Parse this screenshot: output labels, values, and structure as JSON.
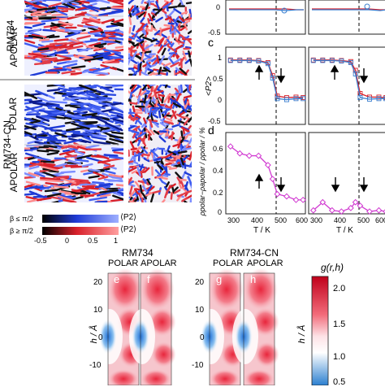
{
  "left_panels": {
    "row_labels": [
      "RM734",
      "RM734-CN"
    ],
    "sub_labels": [
      "POLAR",
      "APOLAR",
      "POLAR",
      "APOLAR"
    ],
    "colorbar": {
      "row1_label": "β ≤ π/2",
      "row2_label": "β ≥ π/2",
      "p2_label": "⟨P2⟩",
      "ticks": [
        "-0.5",
        "0",
        "0.5",
        "1"
      ],
      "colors_row1": [
        "#000000",
        "#1f3bd6",
        "#9fb0ff"
      ],
      "colors_row2": [
        "#000000",
        "#d8202a",
        "#ff9f9f"
      ]
    }
  },
  "right_panels": {
    "panel_c": {
      "letter": "c",
      "ylabel": "<P2>",
      "yticks": [
        "1",
        "0.5",
        "0",
        "-0.5"
      ]
    },
    "panel_top": {
      "ytick_minus": "-0.5",
      "ytick_zero": "0"
    },
    "panel_d": {
      "letter": "d",
      "ylabel": "ρpolar−ρapolar / ρpolar / %",
      "yticks": [
        "0.6",
        "0.4",
        "0.2",
        "0"
      ]
    },
    "xticks": [
      "300",
      "400",
      "500",
      "600"
    ],
    "xlabel": "T / K",
    "dashed_line_at_T": 470
  },
  "chart_data": [
    {
      "type": "line",
      "panel": "c-left",
      "x": [
        290,
        330,
        370,
        410,
        450,
        470,
        490,
        530,
        570,
        600
      ],
      "series": [
        {
          "color": "#d8202a",
          "values": [
            0.75,
            0.75,
            0.75,
            0.74,
            0.7,
            0.45,
            0.05,
            0.02,
            0.03,
            0.02
          ]
        },
        {
          "color": "#3a7fd0",
          "values": [
            0.74,
            0.74,
            0.74,
            0.73,
            0.68,
            0.4,
            0.0,
            -0.02,
            0.0,
            0.0
          ]
        }
      ],
      "ylim": [
        -0.5,
        1
      ]
    },
    {
      "type": "line",
      "panel": "c-right",
      "x": [
        290,
        330,
        370,
        410,
        450,
        470,
        490,
        530,
        570,
        600
      ],
      "series": [
        {
          "color": "#d8202a",
          "values": [
            0.75,
            0.75,
            0.75,
            0.74,
            0.72,
            0.55,
            0.1,
            0.03,
            0.03,
            0.02
          ]
        },
        {
          "color": "#3a7fd0",
          "values": [
            0.74,
            0.74,
            0.74,
            0.73,
            0.7,
            0.48,
            0.02,
            -0.01,
            0.0,
            0.0
          ]
        }
      ],
      "ylim": [
        -0.5,
        1
      ]
    },
    {
      "type": "line",
      "panel": "d-left",
      "x": [
        290,
        330,
        370,
        410,
        450,
        470,
        490,
        530,
        570,
        600
      ],
      "series": [
        {
          "color": "#d13ad1",
          "values": [
            0.58,
            0.52,
            0.5,
            0.5,
            0.42,
            0.3,
            0.17,
            0.15,
            0.12,
            0.12
          ]
        }
      ],
      "ylim": [
        0,
        0.7
      ]
    },
    {
      "type": "line",
      "panel": "d-right",
      "x": [
        290,
        330,
        370,
        410,
        450,
        470,
        490,
        530,
        570,
        600
      ],
      "series": [
        {
          "color": "#d13ad1",
          "values": [
            0.03,
            0.1,
            0.03,
            0.02,
            0.05,
            0.1,
            0.07,
            0.02,
            0.03,
            0.02
          ]
        }
      ],
      "ylim": [
        0,
        0.7
      ]
    },
    {
      "type": "heatmap",
      "panel": "bottom",
      "group_labels": [
        "RM734",
        "RM734-CN"
      ],
      "sub_labels": [
        "POLAR",
        "APOLAR",
        "POLAR",
        "APOLAR"
      ],
      "letters": [
        "e",
        "f",
        "g",
        "h"
      ],
      "ylabel": "h / Å",
      "yticks": [
        "20",
        "10",
        "0",
        "-10"
      ],
      "colorbar_label": "g(r,h)",
      "colorbar_ticks": [
        "2.0",
        "1.5",
        "1.0",
        "0.5"
      ]
    }
  ]
}
